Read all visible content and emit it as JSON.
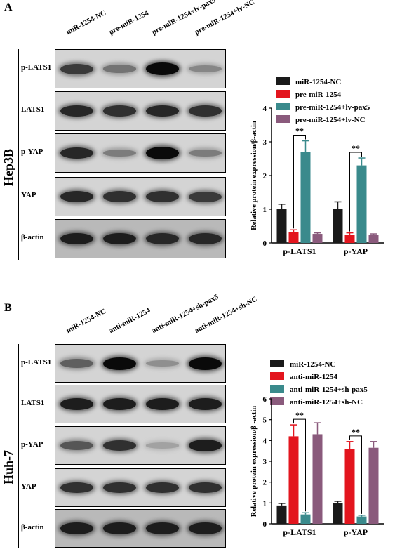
{
  "panels": [
    {
      "letter": "A",
      "cell_line": "Hep3B",
      "lanes": [
        "miR-1254-NC",
        "pre-miR-1254",
        "pre-miR-1254+lv-pax5",
        "pre-miR-1254+lv-NC"
      ],
      "blots": [
        {
          "label": "p-LATS1",
          "intensity": [
            0.75,
            0.45,
            1.0,
            0.35
          ]
        },
        {
          "label": "LATS1",
          "intensity": [
            0.85,
            0.8,
            0.85,
            0.8
          ]
        },
        {
          "label": "p-YAP",
          "intensity": [
            0.85,
            0.4,
            1.0,
            0.4
          ]
        },
        {
          "label": "YAP",
          "intensity": [
            0.85,
            0.8,
            0.8,
            0.75
          ]
        },
        {
          "label": "β-actin",
          "intensity": [
            0.9,
            0.9,
            0.85,
            0.85
          ]
        }
      ],
      "chart_data": {
        "type": "bar",
        "ylabel": "Relative protein expression/β-actin",
        "ylim": [
          0,
          4
        ],
        "yticks": [
          0,
          1,
          2,
          3,
          4
        ],
        "categories": [
          "p-LATS1",
          "p-YAP"
        ],
        "series": [
          {
            "name": "miR-1254-NC",
            "values": [
              1.0,
              1.02
            ],
            "errors": [
              0.15,
              0.2
            ],
            "color": "#1a1a1a"
          },
          {
            "name": "pre-miR-1254",
            "values": [
              0.33,
              0.25
            ],
            "errors": [
              0.06,
              0.05
            ],
            "color": "#e3151e"
          },
          {
            "name": "pre-miR-1254+lv-pax5",
            "values": [
              2.7,
              2.3
            ],
            "errors": [
              0.33,
              0.22
            ],
            "color": "#3a8a8c"
          },
          {
            "name": "pre-miR-1254+lv-NC",
            "values": [
              0.27,
              0.24
            ],
            "errors": [
              0.03,
              0.03
            ],
            "color": "#8a5a7c"
          }
        ],
        "significance": [
          "**",
          "**"
        ]
      }
    },
    {
      "letter": "B",
      "cell_line": "Huh-7",
      "lanes": [
        "miR-1254-NC",
        "anti-miR-1254",
        "anti-miR-1254+sh-pax5",
        "anti-miR-1254+sh-NC"
      ],
      "blots": [
        {
          "label": "p-LATS1",
          "intensity": [
            0.55,
            1.0,
            0.3,
            1.0
          ]
        },
        {
          "label": "LATS1",
          "intensity": [
            0.9,
            0.9,
            0.9,
            0.9
          ]
        },
        {
          "label": "p-YAP",
          "intensity": [
            0.6,
            0.8,
            0.2,
            0.9
          ]
        },
        {
          "label": "YAP",
          "intensity": [
            0.8,
            0.8,
            0.8,
            0.8
          ]
        },
        {
          "label": "β-actin",
          "intensity": [
            0.9,
            0.9,
            0.9,
            0.9
          ]
        }
      ],
      "chart_data": {
        "type": "bar",
        "ylabel": "Relative protein expression/β -actin",
        "ylim": [
          0,
          6
        ],
        "yticks": [
          0,
          1,
          2,
          3,
          4,
          5,
          6
        ],
        "categories": [
          "p-LATS1",
          "p-YAP"
        ],
        "series": [
          {
            "name": "miR-1254-NC",
            "values": [
              0.88,
              1.0
            ],
            "errors": [
              0.1,
              0.08
            ],
            "color": "#1a1a1a"
          },
          {
            "name": "anti-miR-1254",
            "values": [
              4.2,
              3.6
            ],
            "errors": [
              0.55,
              0.35
            ],
            "color": "#e3151e"
          },
          {
            "name": "anti-miR-1254+sh-pax5",
            "values": [
              0.45,
              0.35
            ],
            "errors": [
              0.08,
              0.06
            ],
            "color": "#3a8a8c"
          },
          {
            "name": "anti-miR-1254+sh-NC",
            "values": [
              4.3,
              3.65
            ],
            "errors": [
              0.55,
              0.3
            ],
            "color": "#8a5a7c"
          }
        ],
        "significance": [
          "**",
          "**"
        ]
      }
    }
  ]
}
